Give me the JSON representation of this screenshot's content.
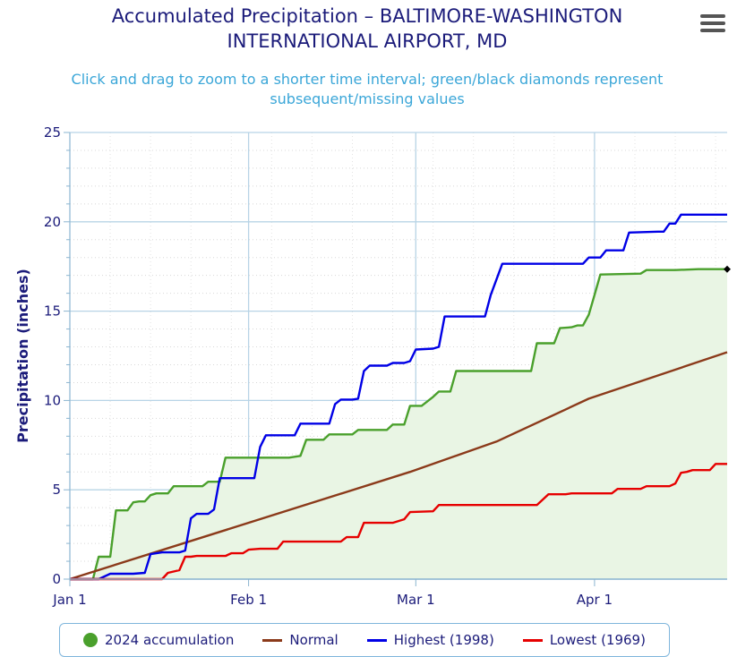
{
  "header": {
    "title_line1": "Accumulated Precipitation – BALTIMORE-WASHINGTON",
    "title_line2": "INTERNATIONAL AIRPORT, MD",
    "subtitle_line1": "Click and drag to zoom to a shorter time interval; green/black diamonds represent",
    "subtitle_line2": "subsequent/missing values",
    "menu_icon": "hamburger-menu-icon"
  },
  "chart_data": {
    "type": "line",
    "title": "Accumulated Precipitation – BALTIMORE-WASHINGTON INTERNATIONAL AIRPORT, MD",
    "xlabel": "",
    "ylabel": "Precipitation (inches)",
    "ylim": [
      0,
      25
    ],
    "y_ticks": [
      0,
      5,
      10,
      15,
      20,
      25
    ],
    "x_ticks": [
      {
        "label": "Jan 1",
        "day": 1
      },
      {
        "label": "Feb 1",
        "day": 32
      },
      {
        "label": "Mar 1",
        "day": 61
      },
      {
        "label": "Apr 1",
        "day": 92
      }
    ],
    "x_range_days": [
      1,
      115
    ],
    "grid": true,
    "legend_position": "bottom",
    "series": [
      {
        "name": "2024 accumulation",
        "color": "#4aa02c",
        "fill": "#e9f5e4",
        "legend_marker": "dot",
        "end_marker": "black-diamond",
        "points": [
          [
            1,
            0
          ],
          [
            5,
            0
          ],
          [
            6,
            1.25
          ],
          [
            8,
            1.25
          ],
          [
            9,
            3.85
          ],
          [
            11,
            3.85
          ],
          [
            12,
            4.3
          ],
          [
            13,
            4.35
          ],
          [
            14,
            4.35
          ],
          [
            15,
            4.7
          ],
          [
            16,
            4.8
          ],
          [
            18,
            4.8
          ],
          [
            19,
            5.2
          ],
          [
            24,
            5.2
          ],
          [
            25,
            5.45
          ],
          [
            27,
            5.45
          ],
          [
            28,
            6.8
          ],
          [
            39,
            6.8
          ],
          [
            41,
            6.9
          ],
          [
            42,
            7.8
          ],
          [
            45,
            7.8
          ],
          [
            46,
            8.1
          ],
          [
            50,
            8.1
          ],
          [
            51,
            8.35
          ],
          [
            56,
            8.35
          ],
          [
            57,
            8.65
          ],
          [
            59,
            8.65
          ],
          [
            60,
            9.7
          ],
          [
            62,
            9.7
          ],
          [
            64,
            10.2
          ],
          [
            65,
            10.5
          ],
          [
            67,
            10.5
          ],
          [
            68,
            11.65
          ],
          [
            81,
            11.65
          ],
          [
            82,
            13.2
          ],
          [
            85,
            13.2
          ],
          [
            86,
            14.05
          ],
          [
            88,
            14.1
          ],
          [
            89,
            14.2
          ],
          [
            90,
            14.2
          ],
          [
            91,
            14.8
          ],
          [
            92,
            15.9
          ],
          [
            93,
            17.05
          ],
          [
            100,
            17.1
          ],
          [
            101,
            17.3
          ],
          [
            106,
            17.3
          ],
          [
            110,
            17.35
          ],
          [
            115,
            17.35
          ]
        ]
      },
      {
        "name": "Normal",
        "color": "#8b3a1a",
        "legend_marker": "line",
        "points": [
          [
            1,
            0
          ],
          [
            60,
            6.0
          ],
          [
            75,
            7.7
          ],
          [
            91,
            10.1
          ],
          [
            115,
            12.7
          ]
        ]
      },
      {
        "name": "Highest (1998)",
        "color": "#0000e6",
        "legend_marker": "line",
        "points": [
          [
            1,
            0
          ],
          [
            6,
            0
          ],
          [
            8,
            0.3
          ],
          [
            12,
            0.3
          ],
          [
            14,
            0.35
          ],
          [
            15,
            1.4
          ],
          [
            17,
            1.5
          ],
          [
            20,
            1.5
          ],
          [
            21,
            1.6
          ],
          [
            22,
            3.4
          ],
          [
            23,
            3.65
          ],
          [
            25,
            3.65
          ],
          [
            26,
            3.9
          ],
          [
            27,
            5.65
          ],
          [
            33,
            5.65
          ],
          [
            34,
            7.4
          ],
          [
            35,
            8.05
          ],
          [
            40,
            8.05
          ],
          [
            41,
            8.7
          ],
          [
            46,
            8.7
          ],
          [
            47,
            9.8
          ],
          [
            48,
            10.05
          ],
          [
            50,
            10.05
          ],
          [
            51,
            10.1
          ],
          [
            52,
            11.65
          ],
          [
            53,
            11.95
          ],
          [
            56,
            11.95
          ],
          [
            57,
            12.1
          ],
          [
            59,
            12.1
          ],
          [
            60,
            12.2
          ],
          [
            61,
            12.85
          ],
          [
            64,
            12.9
          ],
          [
            65,
            13.0
          ],
          [
            66,
            14.7
          ],
          [
            73,
            14.7
          ],
          [
            74,
            15.9
          ],
          [
            76,
            17.65
          ],
          [
            86,
            17.65
          ],
          [
            90,
            17.65
          ],
          [
            91,
            18.0
          ],
          [
            93,
            18.0
          ],
          [
            94,
            18.4
          ],
          [
            97,
            18.4
          ],
          [
            98,
            19.4
          ],
          [
            103,
            19.45
          ],
          [
            104,
            19.45
          ],
          [
            105,
            19.9
          ],
          [
            106,
            19.9
          ],
          [
            107,
            20.4
          ],
          [
            115,
            20.4
          ]
        ]
      },
      {
        "name": "Lowest (1969)",
        "color": "#e60000",
        "legend_marker": "line",
        "points": [
          [
            1,
            0
          ],
          [
            17,
            0
          ],
          [
            18,
            0.35
          ],
          [
            20,
            0.5
          ],
          [
            21,
            1.25
          ],
          [
            22,
            1.25
          ],
          [
            23,
            1.3
          ],
          [
            28,
            1.3
          ],
          [
            29,
            1.45
          ],
          [
            31,
            1.45
          ],
          [
            32,
            1.65
          ],
          [
            34,
            1.7
          ],
          [
            37,
            1.7
          ],
          [
            38,
            2.1
          ],
          [
            48,
            2.1
          ],
          [
            49,
            2.35
          ],
          [
            51,
            2.35
          ],
          [
            52,
            3.15
          ],
          [
            57,
            3.15
          ],
          [
            59,
            3.35
          ],
          [
            60,
            3.75
          ],
          [
            64,
            3.8
          ],
          [
            65,
            4.15
          ],
          [
            82,
            4.15
          ],
          [
            83,
            4.45
          ],
          [
            84,
            4.75
          ],
          [
            87,
            4.75
          ],
          [
            88,
            4.8
          ],
          [
            95,
            4.8
          ],
          [
            96,
            5.05
          ],
          [
            100,
            5.05
          ],
          [
            101,
            5.2
          ],
          [
            105,
            5.2
          ],
          [
            106,
            5.35
          ],
          [
            107,
            5.95
          ],
          [
            108,
            6.0
          ],
          [
            109,
            6.1
          ],
          [
            112,
            6.1
          ],
          [
            113,
            6.45
          ],
          [
            115,
            6.45
          ]
        ]
      }
    ]
  },
  "legend": {
    "items": [
      {
        "label": "2024 accumulation",
        "color": "#4aa02c",
        "marker": "dot"
      },
      {
        "label": "Normal",
        "color": "#8b3a1a",
        "marker": "line"
      },
      {
        "label": "Highest (1998)",
        "color": "#0000e6",
        "marker": "line"
      },
      {
        "label": "Lowest (1969)",
        "color": "#e60000",
        "marker": "line"
      }
    ]
  }
}
